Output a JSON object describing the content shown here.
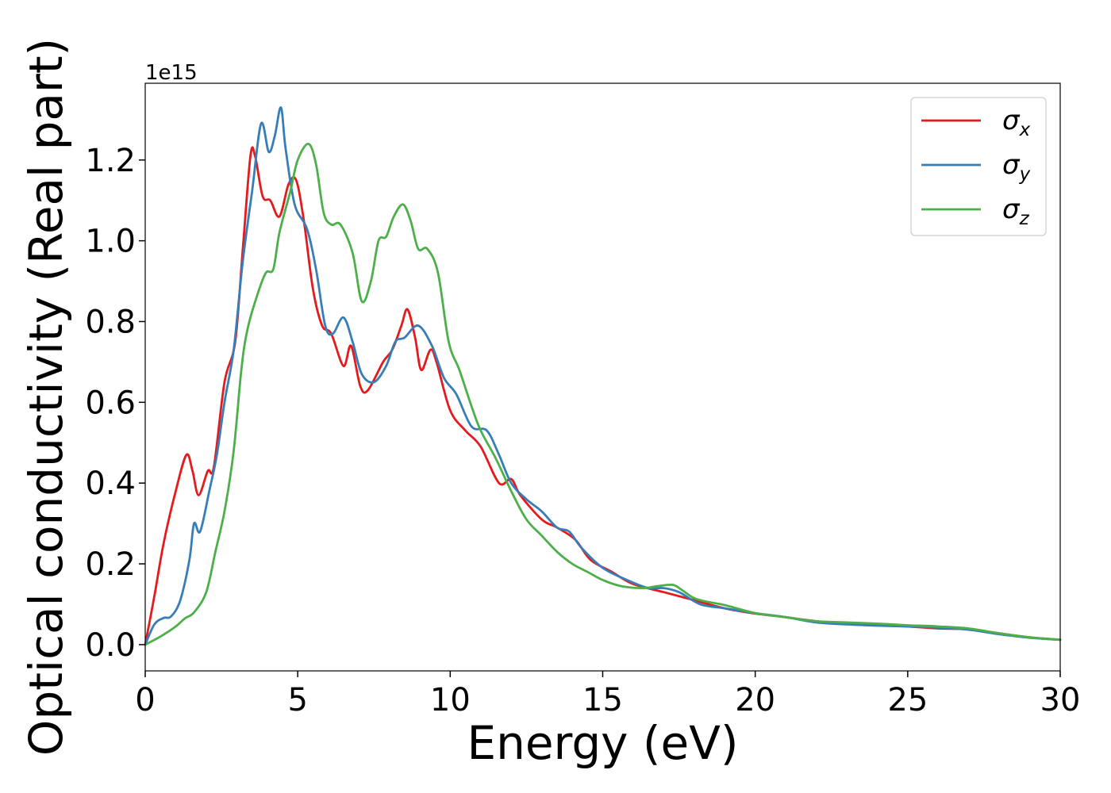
{
  "chart_data": {
    "type": "line",
    "title": "",
    "xlabel": "Energy (eV)",
    "ylabel": "Optical conductivity (Real part)",
    "y_offset_label": "1e15",
    "xlim": [
      0,
      30
    ],
    "ylim": [
      -0.065,
      1.39
    ],
    "x_ticks": [
      0,
      5,
      10,
      15,
      20,
      25,
      30
    ],
    "x_tick_labels": [
      "0",
      "5",
      "10",
      "15",
      "20",
      "25",
      "30"
    ],
    "y_ticks": [
      0.0,
      0.2,
      0.4,
      0.6,
      0.8,
      1.0,
      1.2
    ],
    "y_tick_labels": [
      "0.0",
      "0.2",
      "0.4",
      "0.6",
      "0.8",
      "1.0",
      "1.2"
    ],
    "grid": false,
    "legend_position": "top-right",
    "series": [
      {
        "name": "σ",
        "subscript": "x",
        "color": "#e41a1c",
        "points": [
          [
            0,
            0
          ],
          [
            0.3,
            0.12
          ],
          [
            0.6,
            0.25
          ],
          [
            1.0,
            0.38
          ],
          [
            1.35,
            0.47
          ],
          [
            1.55,
            0.43
          ],
          [
            1.75,
            0.37
          ],
          [
            2.05,
            0.43
          ],
          [
            2.25,
            0.44
          ],
          [
            2.6,
            0.65
          ],
          [
            2.95,
            0.75
          ],
          [
            3.2,
            0.98
          ],
          [
            3.45,
            1.21
          ],
          [
            3.6,
            1.21
          ],
          [
            3.85,
            1.11
          ],
          [
            4.1,
            1.1
          ],
          [
            4.4,
            1.06
          ],
          [
            4.7,
            1.14
          ],
          [
            4.95,
            1.15
          ],
          [
            5.2,
            1.05
          ],
          [
            5.5,
            0.88
          ],
          [
            5.8,
            0.79
          ],
          [
            6.1,
            0.77
          ],
          [
            6.5,
            0.69
          ],
          [
            6.75,
            0.74
          ],
          [
            7.05,
            0.64
          ],
          [
            7.3,
            0.63
          ],
          [
            7.8,
            0.7
          ],
          [
            8.1,
            0.73
          ],
          [
            8.4,
            0.79
          ],
          [
            8.6,
            0.83
          ],
          [
            8.85,
            0.76
          ],
          [
            9.05,
            0.68
          ],
          [
            9.35,
            0.73
          ],
          [
            9.55,
            0.7
          ],
          [
            10.0,
            0.58
          ],
          [
            10.5,
            0.53
          ],
          [
            11.0,
            0.49
          ],
          [
            11.6,
            0.4
          ],
          [
            12.0,
            0.41
          ],
          [
            12.3,
            0.37
          ],
          [
            13.0,
            0.31
          ],
          [
            13.5,
            0.29
          ],
          [
            14.1,
            0.26
          ],
          [
            14.6,
            0.21
          ],
          [
            15.3,
            0.18
          ],
          [
            16.0,
            0.15
          ],
          [
            17.0,
            0.13
          ],
          [
            18.0,
            0.11
          ],
          [
            19.0,
            0.09
          ],
          [
            20.0,
            0.077
          ],
          [
            21.0,
            0.068
          ],
          [
            22.0,
            0.058
          ],
          [
            23.0,
            0.052
          ],
          [
            24.0,
            0.048
          ],
          [
            25.0,
            0.045
          ],
          [
            26.0,
            0.04
          ],
          [
            27.0,
            0.038
          ],
          [
            28.0,
            0.028
          ],
          [
            29.0,
            0.018
          ],
          [
            30.0,
            0.012
          ]
        ]
      },
      {
        "name": "σ",
        "subscript": "y",
        "color": "#377eb8",
        "points": [
          [
            0,
            0
          ],
          [
            0.3,
            0.05
          ],
          [
            0.6,
            0.066
          ],
          [
            0.85,
            0.07
          ],
          [
            1.15,
            0.11
          ],
          [
            1.45,
            0.21
          ],
          [
            1.6,
            0.3
          ],
          [
            1.8,
            0.28
          ],
          [
            2.1,
            0.38
          ],
          [
            2.35,
            0.47
          ],
          [
            2.6,
            0.6
          ],
          [
            2.9,
            0.73
          ],
          [
            3.2,
            0.95
          ],
          [
            3.5,
            1.12
          ],
          [
            3.8,
            1.29
          ],
          [
            4.05,
            1.22
          ],
          [
            4.25,
            1.26
          ],
          [
            4.45,
            1.33
          ],
          [
            4.6,
            1.23
          ],
          [
            4.9,
            1.09
          ],
          [
            5.3,
            1.03
          ],
          [
            5.6,
            0.93
          ],
          [
            5.9,
            0.79
          ],
          [
            6.15,
            0.77
          ],
          [
            6.5,
            0.81
          ],
          [
            6.8,
            0.75
          ],
          [
            7.1,
            0.67
          ],
          [
            7.5,
            0.65
          ],
          [
            7.9,
            0.69
          ],
          [
            8.2,
            0.75
          ],
          [
            8.5,
            0.76
          ],
          [
            8.95,
            0.79
          ],
          [
            9.4,
            0.74
          ],
          [
            9.8,
            0.66
          ],
          [
            10.2,
            0.62
          ],
          [
            10.7,
            0.54
          ],
          [
            11.2,
            0.53
          ],
          [
            11.6,
            0.47
          ],
          [
            12.0,
            0.4
          ],
          [
            12.5,
            0.36
          ],
          [
            13.0,
            0.33
          ],
          [
            13.5,
            0.29
          ],
          [
            13.9,
            0.28
          ],
          [
            14.3,
            0.24
          ],
          [
            15.0,
            0.19
          ],
          [
            15.8,
            0.16
          ],
          [
            16.5,
            0.14
          ],
          [
            17.0,
            0.14
          ],
          [
            17.5,
            0.13
          ],
          [
            18.2,
            0.1
          ],
          [
            19.0,
            0.09
          ],
          [
            20.0,
            0.078
          ],
          [
            21.0,
            0.068
          ],
          [
            22.0,
            0.055
          ],
          [
            23.0,
            0.05
          ],
          [
            24.0,
            0.047
          ],
          [
            25.0,
            0.045
          ],
          [
            26.0,
            0.042
          ],
          [
            27.0,
            0.037
          ],
          [
            28.0,
            0.026
          ],
          [
            29.0,
            0.017
          ],
          [
            30.0,
            0.012
          ]
        ]
      },
      {
        "name": "σ",
        "subscript": "z",
        "color": "#4daf4a",
        "points": [
          [
            0,
            0
          ],
          [
            0.5,
            0.02
          ],
          [
            1.0,
            0.045
          ],
          [
            1.3,
            0.065
          ],
          [
            1.6,
            0.08
          ],
          [
            2.0,
            0.13
          ],
          [
            2.3,
            0.23
          ],
          [
            2.6,
            0.33
          ],
          [
            2.9,
            0.48
          ],
          [
            3.15,
            0.68
          ],
          [
            3.35,
            0.78
          ],
          [
            3.65,
            0.86
          ],
          [
            3.95,
            0.92
          ],
          [
            4.2,
            0.93
          ],
          [
            4.4,
            1.02
          ],
          [
            4.75,
            1.12
          ],
          [
            5.0,
            1.2
          ],
          [
            5.35,
            1.24
          ],
          [
            5.6,
            1.19
          ],
          [
            5.85,
            1.07
          ],
          [
            6.1,
            1.04
          ],
          [
            6.4,
            1.04
          ],
          [
            6.8,
            0.97
          ],
          [
            7.1,
            0.85
          ],
          [
            7.4,
            0.9
          ],
          [
            7.65,
            1.0
          ],
          [
            7.9,
            1.01
          ],
          [
            8.15,
            1.06
          ],
          [
            8.45,
            1.09
          ],
          [
            8.7,
            1.05
          ],
          [
            8.95,
            0.98
          ],
          [
            9.25,
            0.98
          ],
          [
            9.6,
            0.92
          ],
          [
            9.95,
            0.75
          ],
          [
            10.3,
            0.68
          ],
          [
            10.7,
            0.59
          ],
          [
            11.0,
            0.53
          ],
          [
            11.5,
            0.46
          ],
          [
            12.0,
            0.38
          ],
          [
            12.5,
            0.31
          ],
          [
            13.0,
            0.27
          ],
          [
            13.5,
            0.23
          ],
          [
            14.0,
            0.2
          ],
          [
            14.5,
            0.18
          ],
          [
            15.0,
            0.16
          ],
          [
            15.6,
            0.145
          ],
          [
            16.3,
            0.14
          ],
          [
            16.8,
            0.145
          ],
          [
            17.3,
            0.148
          ],
          [
            17.6,
            0.135
          ],
          [
            18.0,
            0.115
          ],
          [
            18.5,
            0.105
          ],
          [
            19.0,
            0.098
          ],
          [
            20.0,
            0.078
          ],
          [
            21.0,
            0.068
          ],
          [
            22.0,
            0.058
          ],
          [
            23.0,
            0.055
          ],
          [
            24.0,
            0.052
          ],
          [
            25.0,
            0.048
          ],
          [
            26.0,
            0.045
          ],
          [
            27.0,
            0.04
          ],
          [
            28.0,
            0.028
          ],
          [
            29.0,
            0.018
          ],
          [
            30.0,
            0.012
          ]
        ]
      }
    ]
  }
}
